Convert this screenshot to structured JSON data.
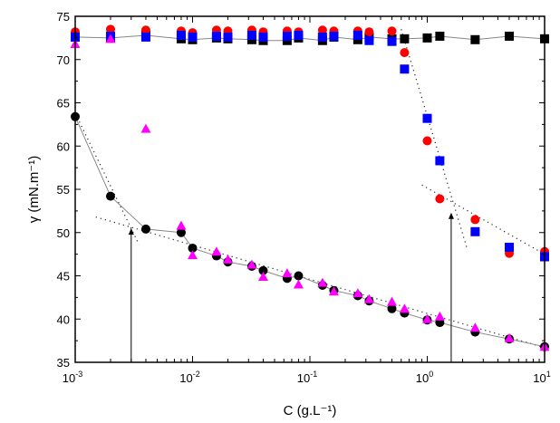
{
  "chart_data": {
    "type": "scatter",
    "title": "",
    "xlabel": "C (g.L⁻¹)",
    "ylabel": "γ (mN.m⁻¹)",
    "xscale": "log",
    "xlim": [
      0.001,
      10
    ],
    "ylim": [
      35,
      75
    ],
    "xticks": [
      {
        "value": 0.001,
        "base": "10",
        "exp": "-3"
      },
      {
        "value": 0.01,
        "base": "10",
        "exp": "-2"
      },
      {
        "value": 0.1,
        "base": "10",
        "exp": "-1"
      },
      {
        "value": 1,
        "base": "10",
        "exp": "0"
      },
      {
        "value": 10,
        "base": "10",
        "exp": "1"
      }
    ],
    "yticks": [
      35,
      40,
      45,
      50,
      55,
      60,
      65,
      70,
      75
    ],
    "grid": false,
    "legend": "none",
    "series": [
      {
        "marker": "square",
        "color": "#000000",
        "line": true,
        "x": [
          0.001,
          0.002,
          0.004,
          0.008,
          0.01,
          0.016,
          0.02,
          0.032,
          0.04,
          0.064,
          0.08,
          0.128,
          0.16,
          0.256,
          0.32,
          0.5,
          0.64,
          1,
          1.28,
          2.56,
          5,
          10
        ],
        "y": [
          72.6,
          72.5,
          72.8,
          72.4,
          72.3,
          72.5,
          72.4,
          72.3,
          72.2,
          72.2,
          72.5,
          72.2,
          72.6,
          72.3,
          72.6,
          72.4,
          72.4,
          72.5,
          72.7,
          72.3,
          72.7,
          72.4
        ]
      },
      {
        "marker": "circle",
        "color": "#ff0000",
        "line": false,
        "x": [
          0.001,
          0.002,
          0.004,
          0.008,
          0.01,
          0.016,
          0.02,
          0.032,
          0.04,
          0.064,
          0.08,
          0.128,
          0.16,
          0.256,
          0.32,
          0.5,
          0.64,
          1,
          1.28,
          2.56,
          5,
          10
        ],
        "y": [
          73.2,
          73.5,
          73.4,
          73.3,
          73.1,
          73.4,
          73.3,
          73.4,
          73.2,
          73.3,
          73.2,
          73.4,
          73.3,
          73.3,
          73.2,
          73.3,
          70.8,
          60.6,
          53.9,
          51.5,
          47.6,
          47.8
        ]
      },
      {
        "marker": "square",
        "color": "#0000ff",
        "line": false,
        "x": [
          0.001,
          0.002,
          0.004,
          0.008,
          0.01,
          0.016,
          0.02,
          0.032,
          0.04,
          0.064,
          0.08,
          0.128,
          0.16,
          0.256,
          0.32,
          0.5,
          0.64,
          1,
          1.28,
          2.56,
          5,
          10
        ],
        "y": [
          72.6,
          72.7,
          72.6,
          72.8,
          72.6,
          72.7,
          72.6,
          72.8,
          72.6,
          72.7,
          72.8,
          72.6,
          72.7,
          72.8,
          72.2,
          72.1,
          68.9,
          63.2,
          58.3,
          50.1,
          48.3,
          47.2
        ]
      },
      {
        "marker": "circle",
        "color": "#000000",
        "line": true,
        "x": [
          0.001,
          0.002,
          0.004,
          0.008,
          0.01,
          0.016,
          0.02,
          0.032,
          0.04,
          0.064,
          0.08,
          0.128,
          0.16,
          0.256,
          0.32,
          0.5,
          0.64,
          1,
          1.28,
          2.56,
          5,
          10
        ],
        "y": [
          63.4,
          54.2,
          50.4,
          50.0,
          48.2,
          47.3,
          46.6,
          46.1,
          45.6,
          44.7,
          45.0,
          43.9,
          43.3,
          42.7,
          42.1,
          41.2,
          40.7,
          39.9,
          39.6,
          38.5,
          37.7,
          36.8
        ]
      },
      {
        "marker": "triangle",
        "color": "#ff00ff",
        "line": false,
        "x": [
          0.001,
          0.002,
          0.004,
          0.008,
          0.01,
          0.016,
          0.02,
          0.032,
          0.04,
          0.064,
          0.08,
          0.128,
          0.16,
          0.256,
          0.32,
          0.5,
          0.64,
          1,
          1.28,
          2.56,
          5,
          10
        ],
        "y": [
          71.8,
          72.4,
          62.0,
          50.8,
          47.4,
          47.8,
          46.9,
          46.3,
          44.9,
          45.3,
          44.0,
          44.2,
          43.2,
          43.0,
          42.3,
          42.0,
          41.2,
          40.0,
          40.3,
          39.0,
          37.8,
          36.8
        ]
      }
    ],
    "fit_lines": [
      {
        "x": [
          0.001,
          0.0035
        ],
        "y": [
          63.8,
          48.6
        ]
      },
      {
        "x": [
          0.0015,
          10
        ],
        "y": [
          51.8,
          36.7
        ]
      },
      {
        "x": [
          0.6,
          2.2
        ],
        "y": [
          73.5,
          48.0
        ]
      },
      {
        "x": [
          0.9,
          10
        ],
        "y": [
          55.5,
          47.5
        ]
      }
    ],
    "annotations": [
      {
        "type": "arrow",
        "x": 0.003,
        "y_from": 35,
        "y_to": 50.5
      },
      {
        "type": "arrow",
        "x": 1.6,
        "y_from": 35,
        "y_to": 52.3
      }
    ]
  }
}
